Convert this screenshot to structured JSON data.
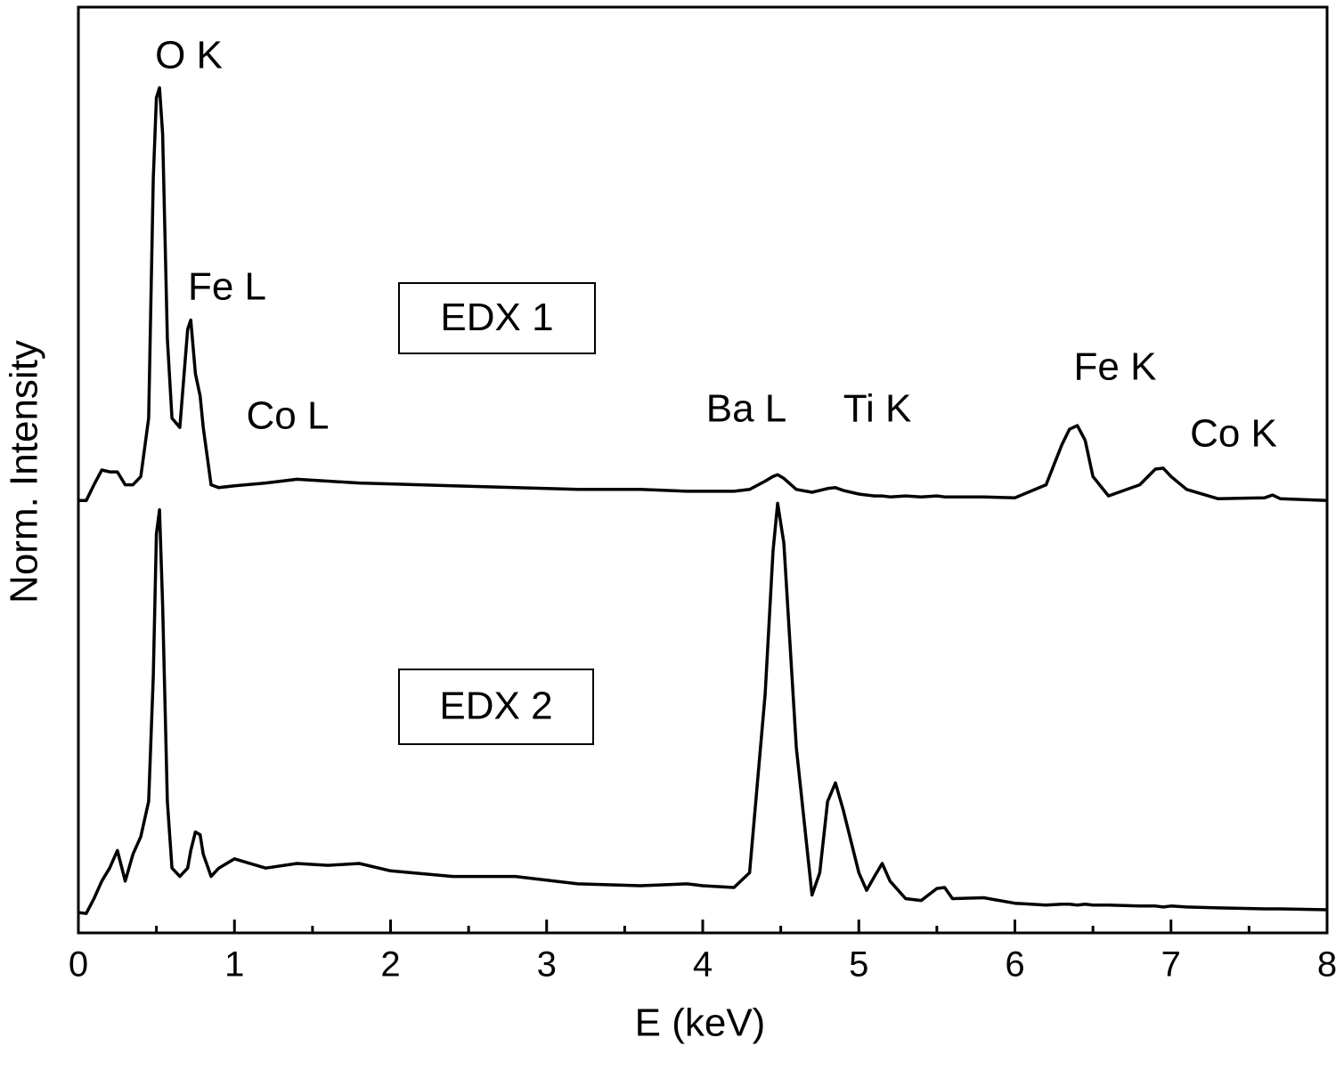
{
  "chart_data": {
    "type": "line",
    "x_label": "E (keV)",
    "y_label": "Norm. Intensity",
    "xlim": [
      0,
      8
    ],
    "ylim": [
      0,
      100
    ],
    "xticks": [
      0,
      1,
      2,
      3,
      4,
      5,
      6,
      7,
      8
    ],
    "xminor_ticks": [
      0.5,
      1.5,
      2.5,
      3.5,
      4.5,
      5.5,
      6.5,
      7.5
    ],
    "x": [
      0,
      0.05,
      0.1,
      0.15,
      0.2,
      0.25,
      0.3,
      0.35,
      0.4,
      0.45,
      0.48,
      0.5,
      0.52,
      0.54,
      0.57,
      0.6,
      0.65,
      0.7,
      0.72,
      0.75,
      0.78,
      0.8,
      0.85,
      0.9,
      1.0,
      1.2,
      1.4,
      1.6,
      1.8,
      2.0,
      2.4,
      2.8,
      3.2,
      3.6,
      3.9,
      4.0,
      4.2,
      4.3,
      4.4,
      4.45,
      4.48,
      4.52,
      4.6,
      4.7,
      4.75,
      4.8,
      4.85,
      4.9,
      5.0,
      5.05,
      5.1,
      5.15,
      5.2,
      5.3,
      5.4,
      5.5,
      5.55,
      5.6,
      5.8,
      6.0,
      6.2,
      6.3,
      6.35,
      6.4,
      6.45,
      6.5,
      6.6,
      6.8,
      6.9,
      6.95,
      7.0,
      7.1,
      7.3,
      7.6,
      7.65,
      7.7,
      8.0
    ],
    "series": [
      {
        "name": "EDX 1",
        "color": "#000000",
        "values": [
          46.7,
          46.7,
          48.4,
          50.0,
          49.8,
          49.8,
          48.4,
          48.4,
          49.3,
          55.6,
          81.5,
          90.2,
          91.3,
          86.3,
          64.2,
          55.6,
          54.6,
          65.2,
          66.2,
          60.4,
          58.0,
          54.6,
          48.4,
          48.1,
          48.3,
          48.6,
          49.0,
          48.8,
          48.6,
          48.5,
          48.3,
          48.1,
          47.9,
          47.9,
          47.7,
          47.7,
          47.7,
          47.9,
          48.8,
          49.3,
          49.5,
          49.1,
          47.9,
          47.6,
          47.8,
          48.0,
          48.1,
          47.8,
          47.4,
          47.3,
          47.2,
          47.2,
          47.1,
          47.2,
          47.1,
          47.2,
          47.1,
          47.1,
          47.1,
          47.0,
          48.4,
          52.7,
          54.4,
          54.8,
          53.2,
          49.3,
          47.2,
          48.4,
          50.1,
          50.2,
          49.3,
          47.9,
          46.9,
          47.0,
          47.3,
          46.9,
          46.7
        ]
      },
      {
        "name": "EDX 2",
        "color": "#000000",
        "values": [
          2.2,
          2.1,
          3.7,
          5.6,
          7.0,
          8.9,
          5.6,
          8.5,
          10.4,
          14.2,
          27.7,
          43.1,
          45.7,
          35.4,
          14.2,
          7.0,
          6.1,
          7.0,
          8.9,
          10.9,
          10.6,
          8.5,
          6.1,
          7.0,
          8.0,
          7.0,
          7.5,
          7.3,
          7.5,
          6.7,
          6.1,
          6.1,
          5.3,
          5.1,
          5.3,
          5.1,
          4.9,
          6.5,
          25.8,
          41.2,
          46.4,
          42.1,
          20.0,
          4.1,
          6.5,
          14.2,
          16.2,
          13.3,
          6.5,
          4.6,
          6.1,
          7.5,
          5.6,
          3.7,
          3.5,
          4.8,
          4.9,
          3.7,
          3.8,
          3.2,
          3.0,
          3.1,
          3.1,
          3.0,
          3.1,
          3.0,
          3.0,
          2.9,
          2.9,
          2.8,
          2.9,
          2.8,
          2.7,
          2.6,
          2.6,
          2.6,
          2.5
        ]
      }
    ],
    "annotations": [
      "O K",
      "Fe L",
      "Co L",
      "Ba L",
      "Ti K",
      "Fe K",
      "Co K"
    ]
  }
}
